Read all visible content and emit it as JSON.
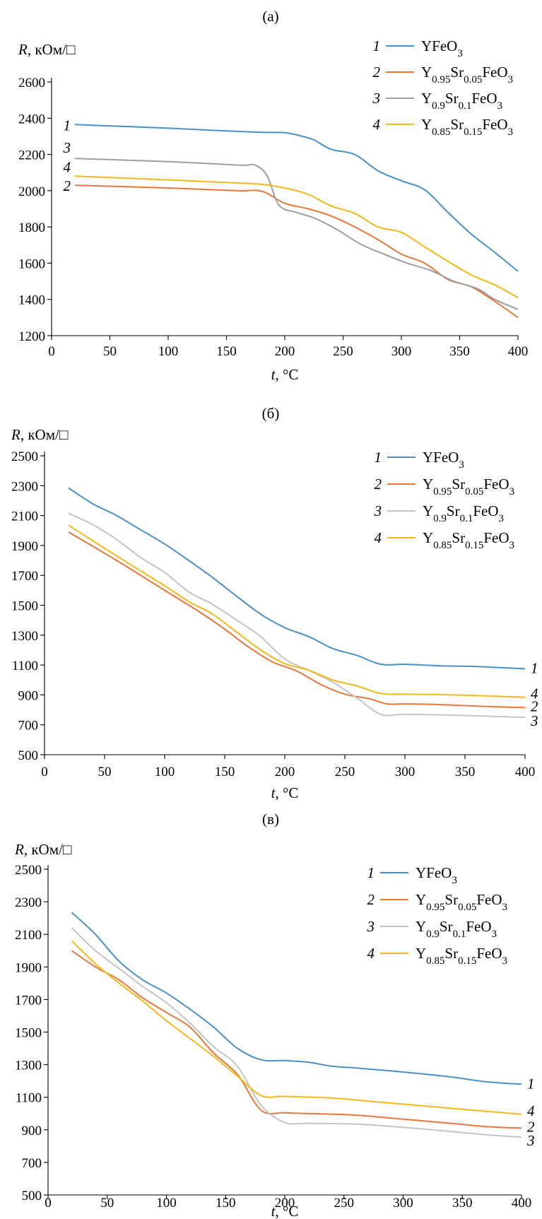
{
  "chart_data": [
    {
      "type": "line",
      "title": "(а)",
      "ylabel": {
        "var": "R",
        "unit": ", кОм/□"
      },
      "xlabel": {
        "var": "t",
        "unit": ", °C"
      },
      "xlim": [
        0,
        400
      ],
      "ylim": [
        1200,
        2600
      ],
      "xticks": [
        0,
        50,
        100,
        150,
        200,
        250,
        300,
        350,
        400
      ],
      "yticks": [
        1200,
        1400,
        1600,
        1800,
        2000,
        2200,
        2400,
        2600
      ],
      "grid": false,
      "legend_position": "top-right",
      "series": [
        {
          "num": "1",
          "name": "YFeO₃",
          "color": "#4a90c8",
          "points": [
            [
              20,
              2365
            ],
            [
              100,
              2345
            ],
            [
              150,
              2330
            ],
            [
              180,
              2322
            ],
            [
              200,
              2320
            ],
            [
              215,
              2300
            ],
            [
              225,
              2280
            ],
            [
              240,
              2228
            ],
            [
              260,
              2200
            ],
            [
              280,
              2110
            ],
            [
              300,
              2055
            ],
            [
              320,
              2005
            ],
            [
              340,
              1880
            ],
            [
              360,
              1760
            ],
            [
              380,
              1660
            ],
            [
              400,
              1555
            ]
          ]
        },
        {
          "num": "2",
          "name": "Y₀.₉₅Sr₀.₀₅FeO₃",
          "color": "#e8773a",
          "points": [
            [
              20,
              2030
            ],
            [
              100,
              2015
            ],
            [
              160,
              2000
            ],
            [
              175,
              2002
            ],
            [
              185,
              1985
            ],
            [
              200,
              1930
            ],
            [
              220,
              1900
            ],
            [
              240,
              1860
            ],
            [
              260,
              1800
            ],
            [
              280,
              1730
            ],
            [
              300,
              1650
            ],
            [
              320,
              1600
            ],
            [
              340,
              1510
            ],
            [
              360,
              1470
            ],
            [
              380,
              1390
            ],
            [
              400,
              1300
            ]
          ]
        },
        {
          "num": "3",
          "name": "Y₀.₉Sr₀.₁FeO₃",
          "color": "#9e9e9e",
          "points": [
            [
              20,
              2178
            ],
            [
              100,
              2160
            ],
            [
              150,
              2145
            ],
            [
              165,
              2140
            ],
            [
              175,
              2140
            ],
            [
              185,
              2080
            ],
            [
              195,
              1920
            ],
            [
              210,
              1880
            ],
            [
              225,
              1850
            ],
            [
              245,
              1785
            ],
            [
              265,
              1705
            ],
            [
              285,
              1650
            ],
            [
              305,
              1600
            ],
            [
              325,
              1560
            ],
            [
              345,
              1500
            ],
            [
              365,
              1460
            ],
            [
              380,
              1400
            ],
            [
              400,
              1345
            ]
          ]
        },
        {
          "num": "4",
          "name": "Y₀.₈₅Sr₀.₁₅FeO₃",
          "color": "#f5b81c",
          "points": [
            [
              20,
              2080
            ],
            [
              100,
              2060
            ],
            [
              150,
              2045
            ],
            [
              180,
              2035
            ],
            [
              200,
              2015
            ],
            [
              220,
              1980
            ],
            [
              240,
              1915
            ],
            [
              260,
              1875
            ],
            [
              280,
              1800
            ],
            [
              300,
              1770
            ],
            [
              320,
              1690
            ],
            [
              340,
              1610
            ],
            [
              360,
              1535
            ],
            [
              380,
              1480
            ],
            [
              400,
              1410
            ]
          ]
        }
      ]
    },
    {
      "type": "line",
      "title": "(б)",
      "ylabel": {
        "var": "R",
        "unit": ", кОм/□"
      },
      "xlabel": {
        "var": "t",
        "unit": ", °C"
      },
      "xlim": [
        0,
        400
      ],
      "ylim": [
        500,
        2500
      ],
      "xticks": [
        0,
        50,
        100,
        150,
        200,
        250,
        300,
        350,
        400
      ],
      "yticks": [
        500,
        700,
        900,
        1100,
        1300,
        1500,
        1700,
        1900,
        2100,
        2300,
        2500
      ],
      "grid": false,
      "legend_position": "top-right",
      "series": [
        {
          "num": "1",
          "name": "YFeO₃",
          "color": "#4a90c8",
          "points": [
            [
              20,
              2285
            ],
            [
              40,
              2180
            ],
            [
              60,
              2100
            ],
            [
              80,
              2005
            ],
            [
              100,
              1910
            ],
            [
              120,
              1800
            ],
            [
              140,
              1685
            ],
            [
              160,
              1560
            ],
            [
              180,
              1440
            ],
            [
              200,
              1350
            ],
            [
              220,
              1290
            ],
            [
              240,
              1210
            ],
            [
              260,
              1165
            ],
            [
              280,
              1105
            ],
            [
              300,
              1105
            ],
            [
              330,
              1095
            ],
            [
              360,
              1090
            ],
            [
              400,
              1075
            ]
          ]
        },
        {
          "num": "2",
          "name": "Y₀.₉₅Sr₀.₀₅FeO₃",
          "color": "#e8773a",
          "points": [
            [
              20,
              1990
            ],
            [
              60,
              1800
            ],
            [
              100,
              1600
            ],
            [
              130,
              1450
            ],
            [
              150,
              1340
            ],
            [
              170,
              1220
            ],
            [
              190,
              1120
            ],
            [
              210,
              1060
            ],
            [
              230,
              970
            ],
            [
              250,
              905
            ],
            [
              270,
              875
            ],
            [
              285,
              840
            ],
            [
              300,
              840
            ],
            [
              330,
              835
            ],
            [
              360,
              825
            ],
            [
              400,
              815
            ]
          ]
        },
        {
          "num": "3",
          "name": "Y₀.₉Sr₀.₁FeO₃",
          "color": "#c4c4c4",
          "points": [
            [
              20,
              2115
            ],
            [
              40,
              2040
            ],
            [
              60,
              1940
            ],
            [
              80,
              1820
            ],
            [
              100,
              1720
            ],
            [
              120,
              1590
            ],
            [
              140,
              1505
            ],
            [
              160,
              1400
            ],
            [
              180,
              1290
            ],
            [
              200,
              1140
            ],
            [
              220,
              1065
            ],
            [
              240,
              985
            ],
            [
              260,
              880
            ],
            [
              280,
              770
            ],
            [
              300,
              770
            ],
            [
              340,
              765
            ],
            [
              400,
              750
            ]
          ]
        },
        {
          "num": "4",
          "name": "Y₀.₈₅Sr₀.₁₅FeO₃",
          "color": "#f5b81c",
          "points": [
            [
              20,
              2035
            ],
            [
              60,
              1830
            ],
            [
              100,
              1630
            ],
            [
              120,
              1525
            ],
            [
              140,
              1440
            ],
            [
              160,
              1320
            ],
            [
              180,
              1200
            ],
            [
              200,
              1110
            ],
            [
              220,
              1065
            ],
            [
              240,
              1000
            ],
            [
              260,
              960
            ],
            [
              280,
              910
            ],
            [
              300,
              905
            ],
            [
              340,
              900
            ],
            [
              400,
              885
            ]
          ]
        }
      ]
    },
    {
      "type": "line",
      "title": "(в)",
      "ylabel": {
        "var": "R",
        "unit": ", кОм/□"
      },
      "xlabel": {
        "var": "t",
        "unit": ", °C"
      },
      "xlim": [
        0,
        400
      ],
      "ylim": [
        500,
        2500
      ],
      "xticks": [
        0,
        50,
        100,
        150,
        200,
        250,
        300,
        350,
        400
      ],
      "yticks": [
        500,
        700,
        900,
        1100,
        1300,
        1500,
        1700,
        1900,
        2100,
        2300,
        2500
      ],
      "grid": false,
      "legend_position": "top-right",
      "series": [
        {
          "num": "1",
          "name": "YFeO₃",
          "color": "#4a90c8",
          "points": [
            [
              20,
              2235
            ],
            [
              40,
              2100
            ],
            [
              60,
              1935
            ],
            [
              80,
              1820
            ],
            [
              100,
              1740
            ],
            [
              120,
              1640
            ],
            [
              140,
              1530
            ],
            [
              160,
              1400
            ],
            [
              180,
              1330
            ],
            [
              200,
              1325
            ],
            [
              220,
              1315
            ],
            [
              240,
              1290
            ],
            [
              260,
              1280
            ],
            [
              300,
              1255
            ],
            [
              340,
              1225
            ],
            [
              370,
              1195
            ],
            [
              400,
              1180
            ]
          ]
        },
        {
          "num": "2",
          "name": "Y₀.₉₅Sr₀.₀₅FeO₃",
          "color": "#e8773a",
          "points": [
            [
              20,
              2000
            ],
            [
              40,
              1900
            ],
            [
              60,
              1820
            ],
            [
              80,
              1710
            ],
            [
              100,
              1620
            ],
            [
              120,
              1530
            ],
            [
              140,
              1370
            ],
            [
              160,
              1240
            ],
            [
              180,
              1020
            ],
            [
              200,
              1005
            ],
            [
              220,
              1000
            ],
            [
              260,
              990
            ],
            [
              300,
              965
            ],
            [
              340,
              940
            ],
            [
              370,
              920
            ],
            [
              400,
              910
            ]
          ]
        },
        {
          "num": "3",
          "name": "Y₀.₉Sr₀.₁FeO₃",
          "color": "#c4c4c4",
          "points": [
            [
              20,
              2140
            ],
            [
              40,
              2000
            ],
            [
              60,
              1890
            ],
            [
              80,
              1780
            ],
            [
              100,
              1680
            ],
            [
              120,
              1555
            ],
            [
              140,
              1410
            ],
            [
              160,
              1290
            ],
            [
              180,
              1050
            ],
            [
              200,
              945
            ],
            [
              220,
              940
            ],
            [
              260,
              935
            ],
            [
              300,
              915
            ],
            [
              340,
              890
            ],
            [
              370,
              870
            ],
            [
              400,
              855
            ]
          ]
        },
        {
          "num": "4",
          "name": "Y₀.₈₅Sr₀.₁₅FeO₃",
          "color": "#f5b81c",
          "points": [
            [
              20,
              2060
            ],
            [
              40,
              1920
            ],
            [
              60,
              1800
            ],
            [
              80,
              1690
            ],
            [
              100,
              1570
            ],
            [
              120,
              1460
            ],
            [
              140,
              1350
            ],
            [
              160,
              1230
            ],
            [
              180,
              1110
            ],
            [
              200,
              1105
            ],
            [
              240,
              1095
            ],
            [
              280,
              1070
            ],
            [
              320,
              1045
            ],
            [
              360,
              1020
            ],
            [
              400,
              995
            ]
          ]
        }
      ]
    }
  ]
}
